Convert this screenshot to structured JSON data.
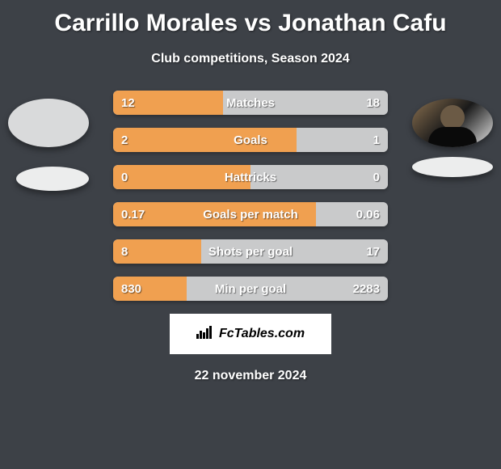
{
  "title": "Carrillo Morales vs Jonathan Cafu",
  "subtitle": "Club competitions, Season 2024",
  "date": "22 november 2024",
  "brand": "FcTables.com",
  "colors": {
    "background": "#3d4147",
    "left_fill": "#f0a050",
    "right_fill": "#c9cacb",
    "text": "#ffffff",
    "brand_bg": "#ffffff"
  },
  "stats": [
    {
      "label": "Matches",
      "left_val": "12",
      "right_val": "18",
      "left_pct": 40
    },
    {
      "label": "Goals",
      "left_val": "2",
      "right_val": "1",
      "left_pct": 66.7
    },
    {
      "label": "Hattricks",
      "left_val": "0",
      "right_val": "0",
      "left_pct": 50
    },
    {
      "label": "Goals per match",
      "left_val": "0.17",
      "right_val": "0.06",
      "left_pct": 73.9
    },
    {
      "label": "Shots per goal",
      "left_val": "8",
      "right_val": "17",
      "left_pct": 32
    },
    {
      "label": "Min per goal",
      "left_val": "830",
      "right_val": "2283",
      "left_pct": 26.7
    }
  ],
  "players": {
    "left": {
      "has_photo": false
    },
    "right": {
      "has_photo": true
    }
  }
}
